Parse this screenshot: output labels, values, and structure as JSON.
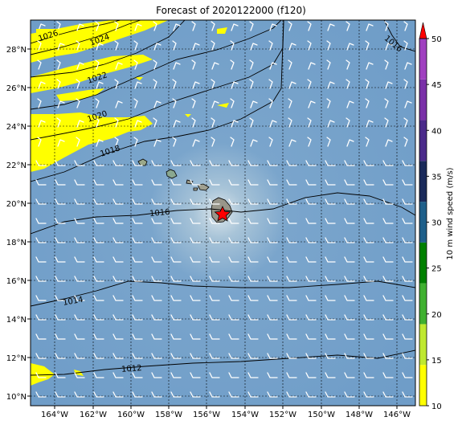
{
  "title": "Forecast of 2020122000 (f120)",
  "map": {
    "lon_ticks": [
      "164°W",
      "162°W",
      "160°W",
      "158°W",
      "156°W",
      "154°W",
      "152°W",
      "150°W",
      "148°W",
      "146°W"
    ],
    "lat_ticks": [
      "28°N",
      "26°N",
      "24°N",
      "22°N",
      "20°N",
      "18°N",
      "16°N",
      "14°N",
      "12°N",
      "10°N"
    ],
    "isobar_labels": [
      "1026",
      "1024",
      "1022",
      "1020",
      "1018",
      "1016",
      "1016",
      "1014",
      "1012"
    ],
    "marker": "red-star"
  },
  "colorbar": {
    "label": "10 m wind speed (m/s)",
    "ticks": [
      "10",
      "15",
      "20",
      "25",
      "30",
      "35",
      "40",
      "45",
      "50"
    ],
    "colors": [
      "#ffff00",
      "#bfe830",
      "#3fb030",
      "#008000",
      "#1e5f8a",
      "#1a2a5a",
      "#4a2a8a",
      "#7a30a8",
      "#a040c0"
    ],
    "extend_color": "#ff0000"
  }
}
